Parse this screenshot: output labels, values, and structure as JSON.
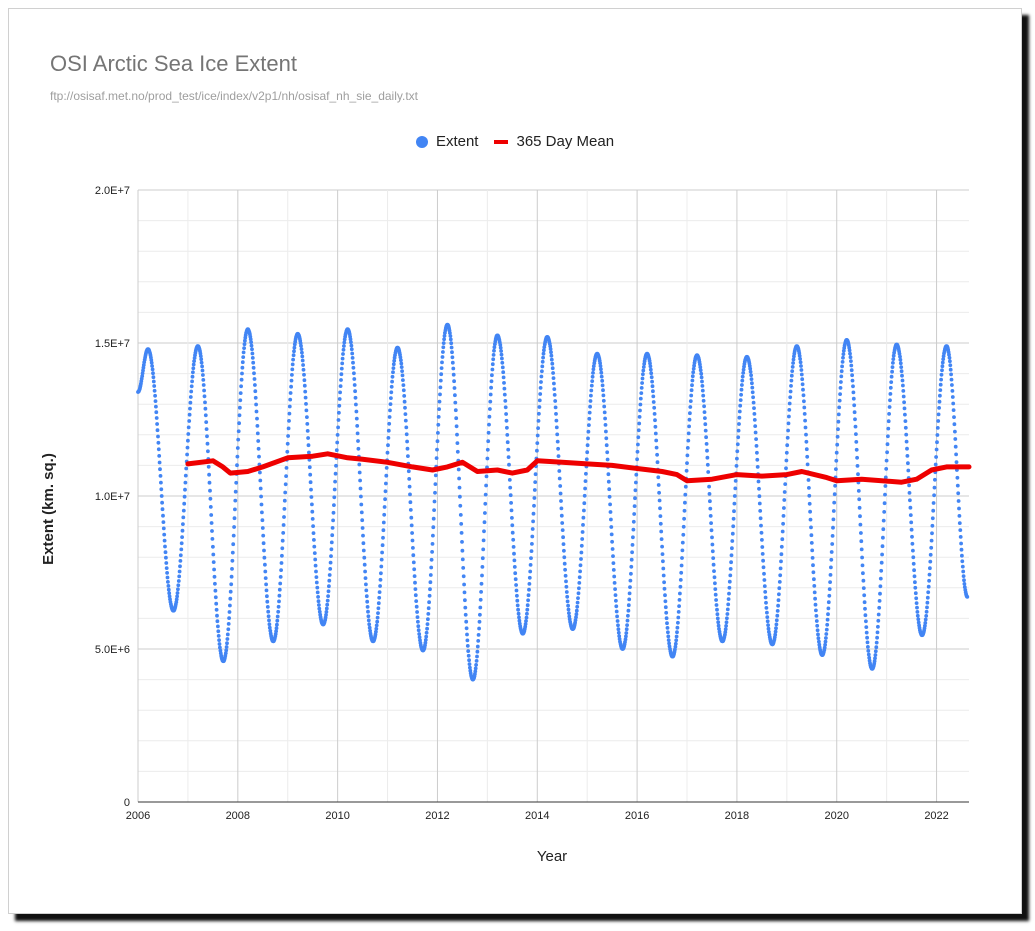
{
  "chart_data": {
    "type": "scatter",
    "title": "OSI Arctic Sea Ice Extent",
    "subtitle": "ftp://osisaf.met.no/prod_test/ice/index/v2p1/nh/osisaf_nh_sie_daily.txt",
    "xlabel": "Year",
    "ylabel": "Extent (km. sq.)",
    "xlim": [
      2006,
      2022.65
    ],
    "ylim": [
      0,
      20000000
    ],
    "x_ticks": [
      "2006",
      "2008",
      "2010",
      "2012",
      "2014",
      "2016",
      "2018",
      "2020",
      "2022"
    ],
    "y_ticks": [
      "0",
      "5.0E+6",
      "1.0E+7",
      "1.5E+7",
      "2.0E+7"
    ],
    "grid": true,
    "legend_position": "top-center",
    "series": [
      {
        "name": "Extent",
        "kind": "points",
        "color": "#4285f4",
        "yearly_extremes": [
          {
            "year": 2006,
            "max": 14800000,
            "min": 6250000
          },
          {
            "year": 2007,
            "max": 14900000,
            "min": 4600000
          },
          {
            "year": 2008,
            "max": 15450000,
            "min": 5250000
          },
          {
            "year": 2009,
            "max": 15300000,
            "min": 5800000
          },
          {
            "year": 2010,
            "max": 15450000,
            "min": 5250000
          },
          {
            "year": 2011,
            "max": 14850000,
            "min": 4950000
          },
          {
            "year": 2012,
            "max": 15600000,
            "min": 4000000
          },
          {
            "year": 2013,
            "max": 15250000,
            "min": 5500000
          },
          {
            "year": 2014,
            "max": 15200000,
            "min": 5650000
          },
          {
            "year": 2015,
            "max": 14650000,
            "min": 5000000
          },
          {
            "year": 2016,
            "max": 14650000,
            "min": 4750000
          },
          {
            "year": 2017,
            "max": 14600000,
            "min": 5250000
          },
          {
            "year": 2018,
            "max": 14550000,
            "min": 5150000
          },
          {
            "year": 2019,
            "max": 14900000,
            "min": 4800000
          },
          {
            "year": 2020,
            "max": 15100000,
            "min": 4350000
          },
          {
            "year": 2021,
            "max": 14950000,
            "min": 5450000
          },
          {
            "year": 2022,
            "max": 14900000,
            "min": null
          }
        ],
        "start": {
          "x": 2006.0,
          "y": 13400000
        },
        "end": {
          "x": 2022.62,
          "y": 6700000
        }
      },
      {
        "name": "365 Day Mean",
        "kind": "line",
        "color": "#ee0000",
        "x": [
          2007.0,
          2007.5,
          2007.7,
          2007.85,
          2008.2,
          2008.5,
          2009.0,
          2009.5,
          2009.8,
          2010.2,
          2010.5,
          2011.0,
          2011.5,
          2011.9,
          2012.2,
          2012.5,
          2012.8,
          2013.2,
          2013.5,
          2013.8,
          2014.0,
          2014.5,
          2015.0,
          2015.5,
          2016.0,
          2016.5,
          2016.8,
          2017.0,
          2017.5,
          2018.0,
          2018.5,
          2019.0,
          2019.3,
          2019.8,
          2020.0,
          2020.5,
          2020.9,
          2021.3,
          2021.6,
          2021.9,
          2022.2,
          2022.65
        ],
        "values": [
          11050000,
          11150000,
          10950000,
          10750000,
          10800000,
          10950000,
          11250000,
          11300000,
          11380000,
          11250000,
          11200000,
          11100000,
          10950000,
          10850000,
          10950000,
          11100000,
          10800000,
          10850000,
          10750000,
          10850000,
          11150000,
          11100000,
          11050000,
          11000000,
          10900000,
          10800000,
          10700000,
          10500000,
          10550000,
          10700000,
          10650000,
          10700000,
          10800000,
          10600000,
          10500000,
          10550000,
          10500000,
          10450000,
          10550000,
          10850000,
          10950000,
          10950000
        ]
      }
    ]
  }
}
